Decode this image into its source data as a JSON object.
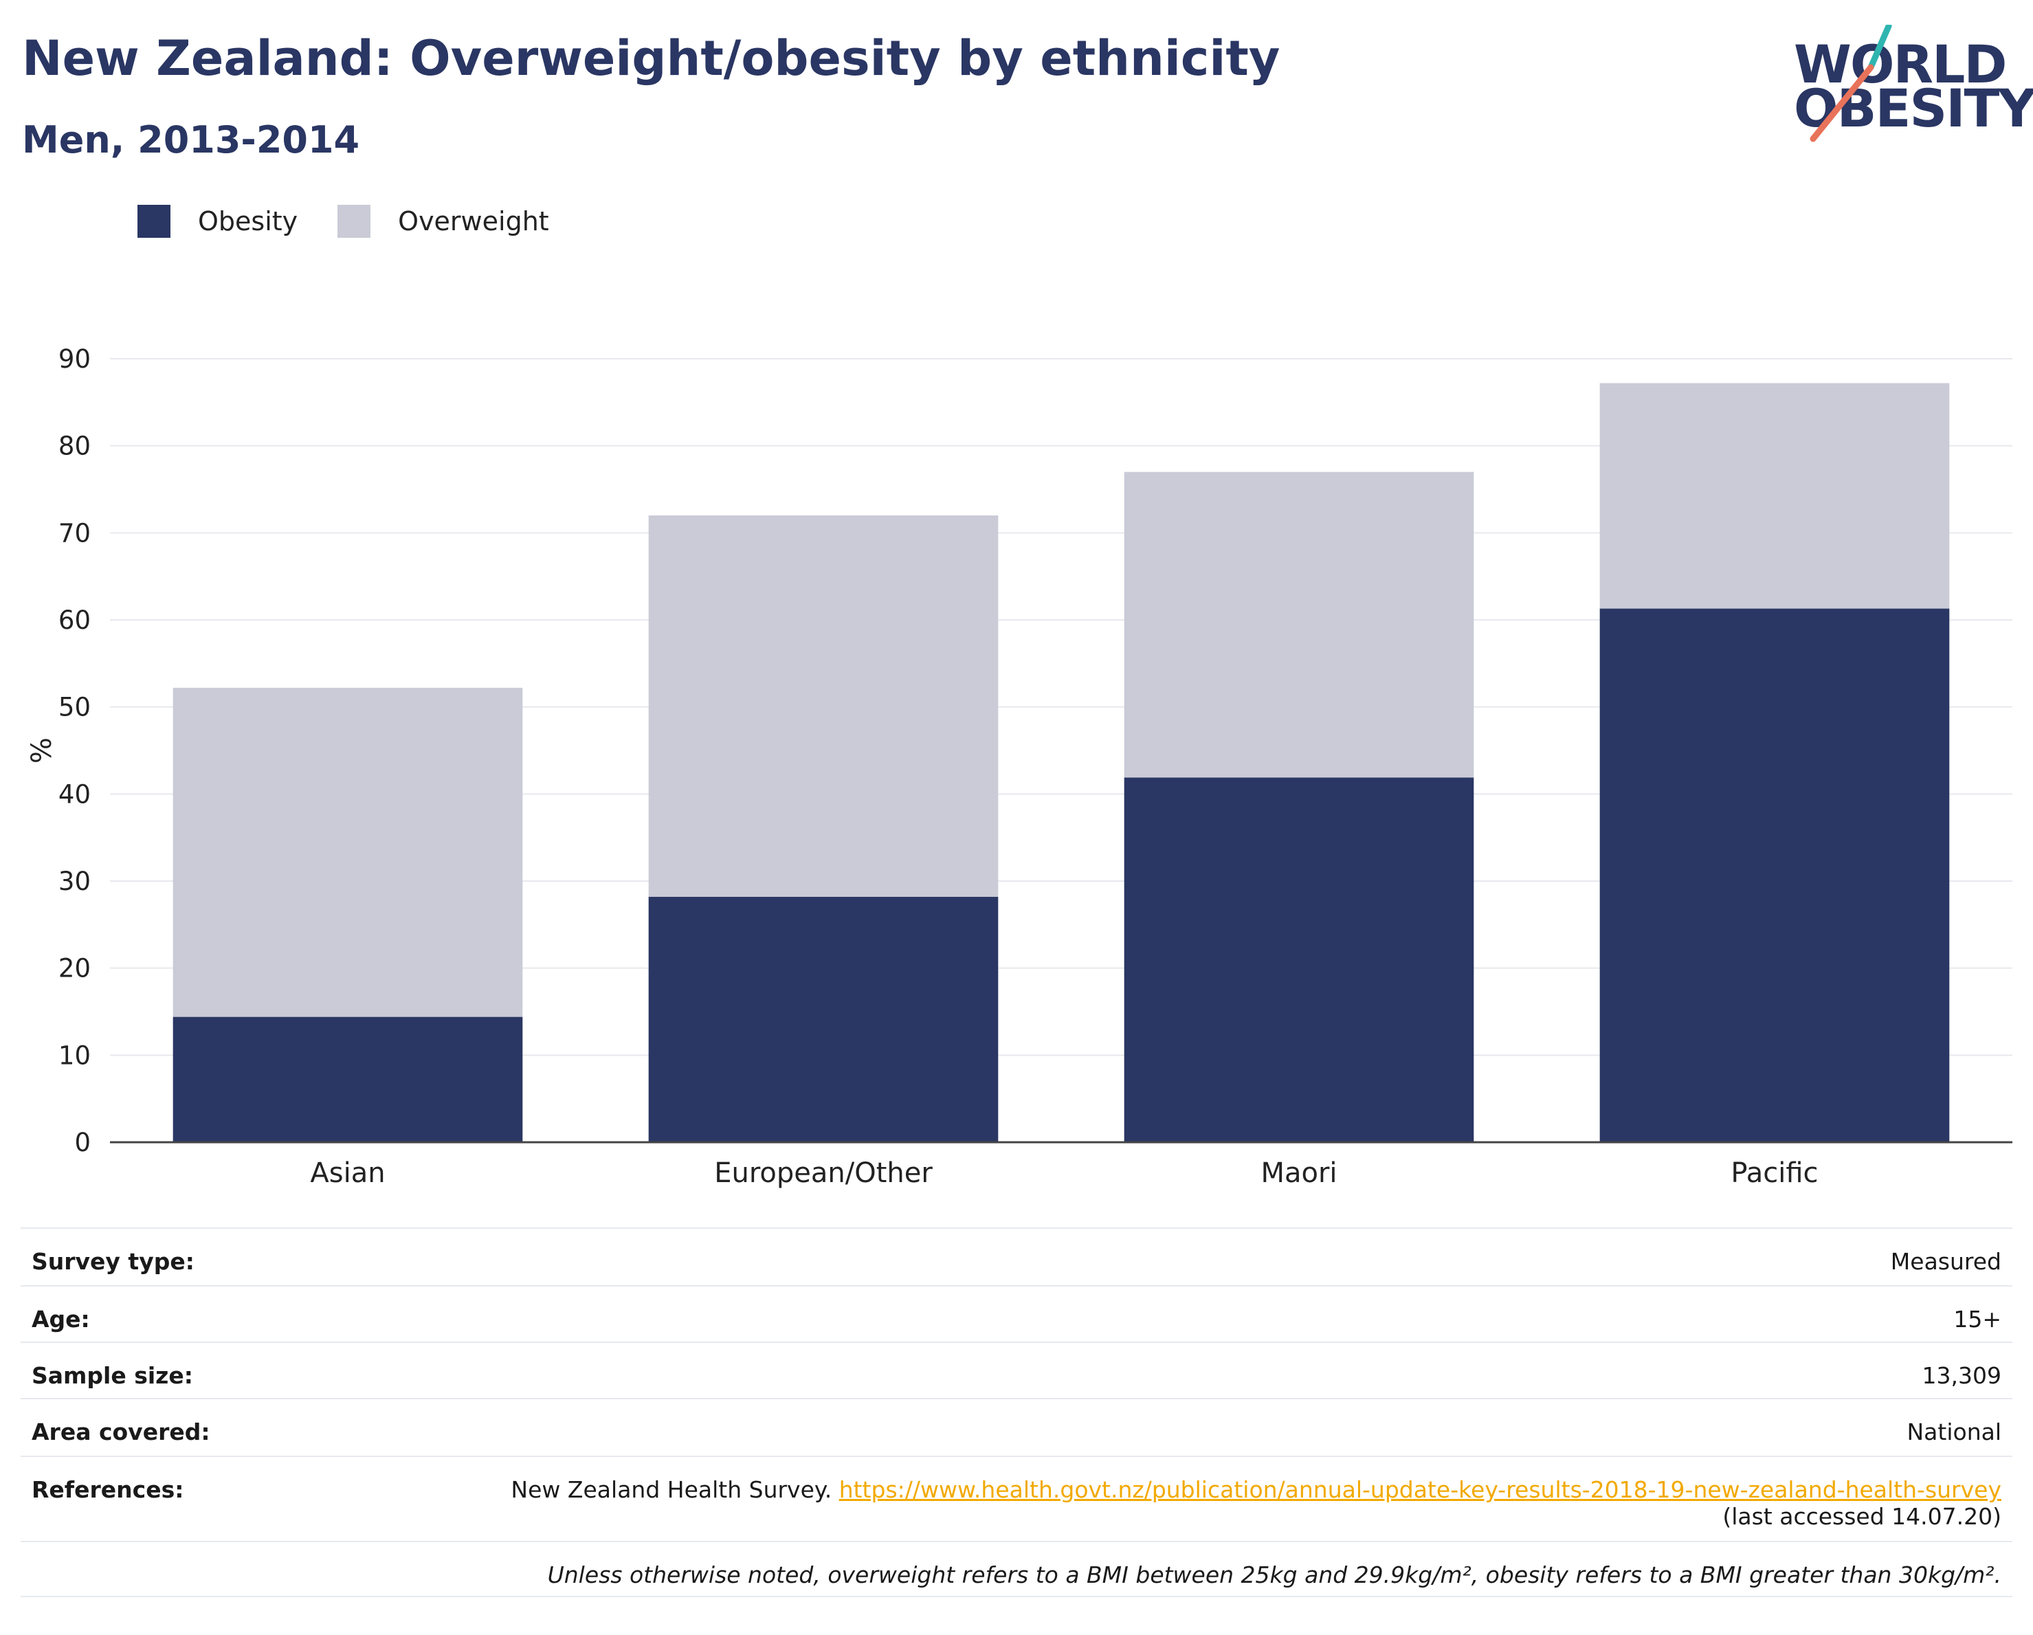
{
  "header": {
    "title": "New Zealand: Overweight/obesity by ethnicity",
    "subtitle": "Men, 2013-2014"
  },
  "logo": {
    "line1": "WORLD",
    "line2": "OBESITY",
    "brand_color": "#2a3663",
    "slash_colors": [
      "#2fb5b0",
      "#e8735a"
    ]
  },
  "legend": {
    "items": [
      {
        "label": "Obesity",
        "color": "#2a3663"
      },
      {
        "label": "Overweight",
        "color": "#cacbd7"
      }
    ]
  },
  "chart_data": {
    "type": "bar",
    "stacked": true,
    "categories": [
      "Asian",
      "European/Other",
      "Maori",
      "Pacific"
    ],
    "series": [
      {
        "name": "Obesity",
        "color": "#2a3663",
        "values": [
          14.4,
          28.2,
          41.9,
          61.3
        ]
      },
      {
        "name": "Overweight",
        "color": "#cacbd7",
        "values": [
          37.8,
          43.8,
          35.1,
          25.9
        ]
      }
    ],
    "totals": [
      52.2,
      72.0,
      77.0,
      87.2
    ],
    "ylabel": "%",
    "xlabel": "",
    "ylim": [
      0,
      90
    ],
    "yticks": [
      0,
      10,
      20,
      30,
      40,
      50,
      60,
      70,
      80,
      90
    ],
    "grid": true,
    "legend_position": "top-left"
  },
  "info": {
    "survey_type": {
      "label": "Survey type:",
      "value": "Measured"
    },
    "age": {
      "label": "Age:",
      "value": "15+"
    },
    "sample_size": {
      "label": "Sample size:",
      "value": "13,309"
    },
    "area_covered": {
      "label": "Area covered:",
      "value": "National"
    },
    "references": {
      "label": "References:",
      "source": "New Zealand Health Survey.",
      "url": "https://www.health.govt.nz/publication/annual-update-key-results-2018-19-new-zealand-health-survey",
      "accessed": "(last accessed 14.07.20)"
    },
    "footnote": "Unless otherwise noted, overweight refers to a BMI between 25kg and 29.9kg/m², obesity refers to a BMI greater than 30kg/m²."
  }
}
